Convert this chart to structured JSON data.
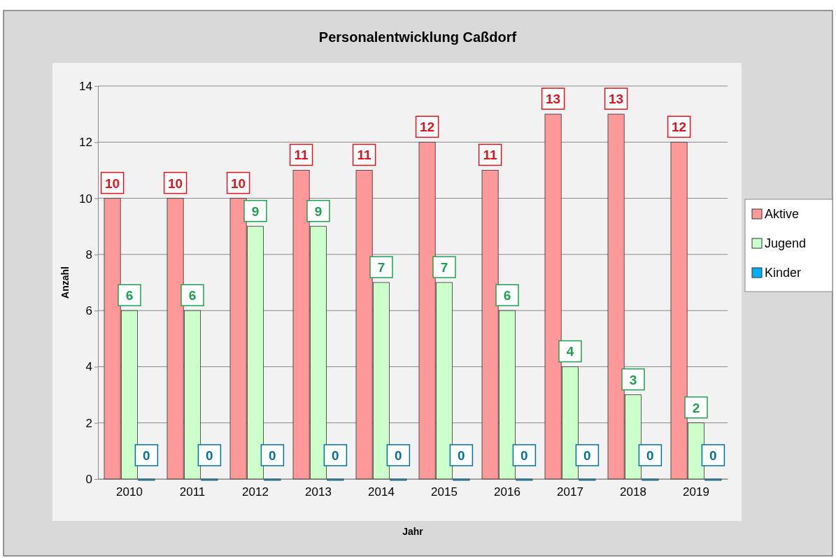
{
  "chart_data": {
    "type": "bar",
    "title": "Personalentwicklung Caßdorf",
    "xlabel": "Jahr",
    "ylabel": "Anzahl",
    "categories": [
      "2010",
      "2011",
      "2012",
      "2013",
      "2014",
      "2015",
      "2016",
      "2017",
      "2018",
      "2019"
    ],
    "series": [
      {
        "name": "Aktive",
        "color": "#ff9999",
        "values": [
          10,
          10,
          10,
          11,
          11,
          12,
          11,
          13,
          13,
          12
        ]
      },
      {
        "name": "Jugend",
        "color": "#ccffcc",
        "values": [
          6,
          6,
          9,
          9,
          7,
          7,
          6,
          4,
          3,
          2
        ]
      },
      {
        "name": "Kinder",
        "color": "#00b0f0",
        "values": [
          0,
          0,
          0,
          0,
          0,
          0,
          0,
          0,
          0,
          0
        ]
      }
    ],
    "ylim": [
      0,
      14
    ],
    "yticks": [
      0,
      2,
      4,
      6,
      8,
      10,
      12,
      14
    ],
    "grid": "y",
    "legend": "right",
    "data_labels": true
  }
}
